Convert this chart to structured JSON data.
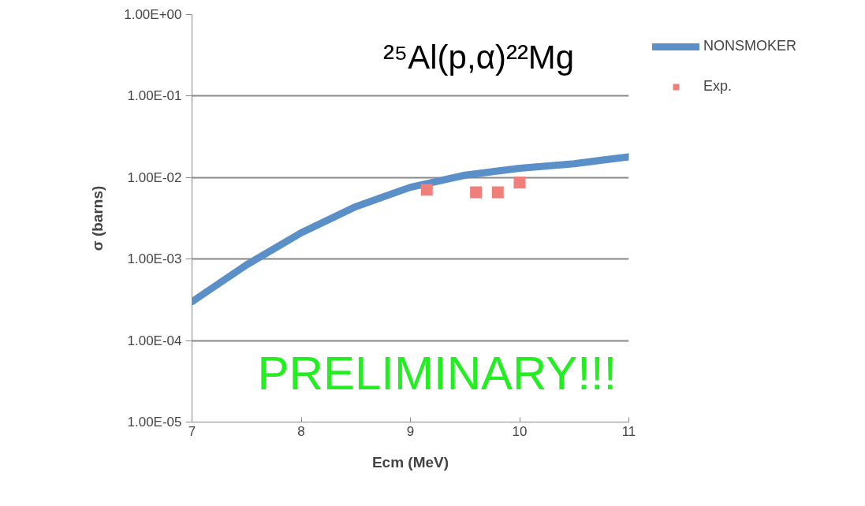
{
  "chart_data": {
    "type": "line",
    "title": "²⁵Al(p,α)²²Mg",
    "xlabel": "Ecm (MeV)",
    "ylabel": "σ (barns)",
    "annotations": [
      "PRELIMINARY!!!"
    ],
    "series": [
      {
        "name": "NONSMOKER",
        "type": "line",
        "color": "#5b8fc7",
        "x": [
          7,
          7.5,
          8,
          8.5,
          9,
          9.5,
          10,
          10.5,
          11
        ],
        "values": [
          0.0003,
          0.00085,
          0.0021,
          0.0044,
          0.0076,
          0.0107,
          0.013,
          0.0148,
          0.018
        ]
      },
      {
        "name": "Exp.",
        "type": "scatter",
        "color": "#ef7f7a",
        "marker": "square",
        "x": [
          9.15,
          9.6,
          9.8,
          10.0
        ],
        "values": [
          0.0071,
          0.0066,
          0.0066,
          0.0087
        ]
      }
    ],
    "log": "y",
    "xlim": [
      7,
      11
    ],
    "xticks": [
      7,
      8,
      9,
      10,
      11
    ],
    "ylim": [
      1e-05,
      1
    ],
    "yticks": [
      {
        "value": 1e-05,
        "label": "1.00E-05"
      },
      {
        "value": 0.0001,
        "label": "1.00E-04"
      },
      {
        "value": 0.001,
        "label": "1.00E-03"
      },
      {
        "value": 0.01,
        "label": "1.00E-02"
      },
      {
        "value": 0.1,
        "label": "1.00E-01"
      },
      {
        "value": 1,
        "label": "1.00E+00"
      }
    ],
    "grid": "y",
    "legend": "right"
  }
}
